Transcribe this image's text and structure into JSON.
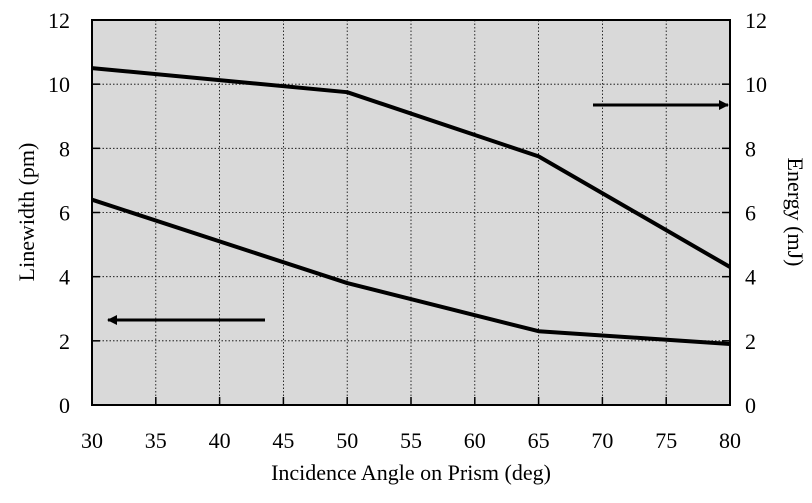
{
  "chart_data": {
    "type": "line",
    "x_label": "Incidence Angle on Prism (deg)",
    "y_label": "Linewidth (pm)",
    "y2_label": "Energy (mJ)",
    "x": [
      30,
      50,
      65,
      80
    ],
    "series": [
      {
        "color": "#000000",
        "values": [
          10.5,
          9.75,
          7.75,
          4.3
        ],
        "axis": "y2"
      },
      {
        "color": "#000000",
        "values": [
          6.4,
          3.8,
          2.3,
          1.9
        ]
      }
    ],
    "xlim": [
      30,
      80
    ],
    "xticks": [
      30,
      35,
      40,
      45,
      50,
      55,
      60,
      65,
      70,
      75,
      80
    ],
    "ylim": [
      0,
      12
    ],
    "yticks": [
      0,
      2,
      4,
      6,
      8,
      10,
      12
    ],
    "y2lim": [
      0,
      12
    ],
    "y2ticks": [
      0,
      2,
      4,
      6,
      8,
      10,
      12
    ],
    "grid": true
  }
}
